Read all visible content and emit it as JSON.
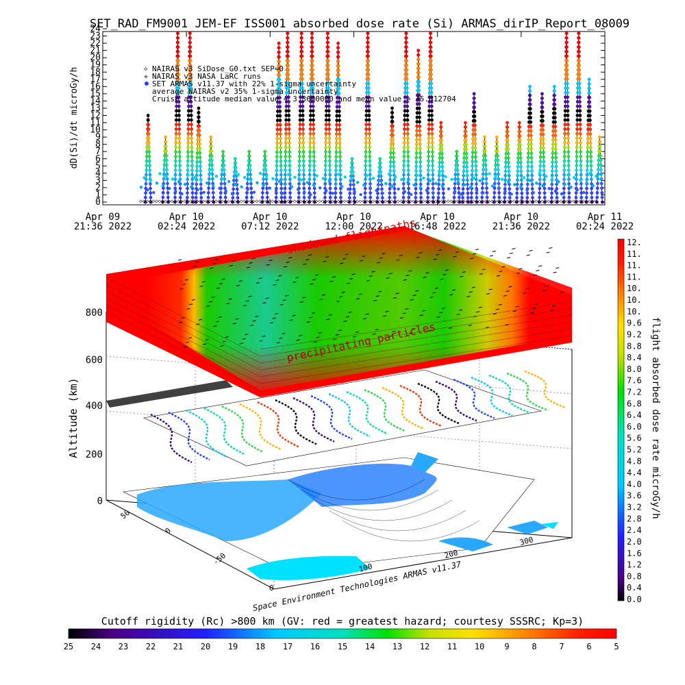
{
  "title": "SET_RAD_FM9001  JEM-EF ISS001 absorbed dose rate (Si) ARMAS_dirIP_Report_08009",
  "chart_data": [
    {
      "type": "scatter",
      "title": "SET_RAD_FM9001  JEM-EF ISS001 absorbed dose rate (Si) ARMAS_dirIP_Report_08009",
      "ylabel": "dD(Si)/dt microGy/h",
      "ylim": [
        0,
        24
      ],
      "yticks": [
        "0",
        "1",
        "2",
        "3",
        "4",
        "5",
        "6",
        "7",
        "8",
        "9",
        "10",
        "11",
        "12",
        "13",
        "14",
        "15",
        "16",
        "17",
        "18",
        "19",
        "20",
        "21",
        "22",
        "23",
        "24"
      ],
      "xlim_hours": [
        0,
        28.8
      ],
      "xticks": [
        {
          "line1": "Apr 09",
          "line2": "21:36 2022",
          "hours": 0
        },
        {
          "line1": "Apr 10",
          "line2": "02:24 2022",
          "hours": 4.8
        },
        {
          "line1": "Apr 10",
          "line2": "07:12 2022",
          "hours": 9.6
        },
        {
          "line1": "Apr 10",
          "line2": "12:00 2022",
          "hours": 14.4
        },
        {
          "line1": "Apr 10",
          "line2": "16:48 2022",
          "hours": 19.2
        },
        {
          "line1": "Apr 10",
          "line2": "21:36 2022",
          "hours": 24.0
        },
        {
          "line1": "Apr 11",
          "line2": "02:24 2022",
          "hours": 28.8
        }
      ],
      "legend": [
        {
          "symbol": "diamond",
          "text": "NAIRAS v3 SiDose_G0.txt SEP=0"
        },
        {
          "symbol": "plus",
          "text": "NAIRAS v3 NASA LaRC runs"
        },
        {
          "symbol": "dot",
          "text": "SET ARMAS v11.37 with 22% 1-sigma uncertainty"
        },
        {
          "symbol": "none",
          "text": "average NAIRAS v2 35% 1-sigma uncertainty"
        },
        {
          "symbol": "none",
          "text": "Cruise altitude median value = 3.3600000 and mean value = 35.812704"
        }
      ],
      "legend_placement": "top-left",
      "series": [
        {
          "name": "SET ARMAS v11.37 with 22% 1-sigma uncertainty",
          "spikes": [
            {
              "t": 2.6,
              "peak": 12
            },
            {
              "t": 3.6,
              "peak": 9
            },
            {
              "t": 4.3,
              "peak": 24
            },
            {
              "t": 5.0,
              "peak": 24
            },
            {
              "t": 5.5,
              "peak": 13
            },
            {
              "t": 6.2,
              "peak": 9
            },
            {
              "t": 6.9,
              "peak": 7
            },
            {
              "t": 7.6,
              "peak": 6
            },
            {
              "t": 8.4,
              "peak": 7
            },
            {
              "t": 9.3,
              "peak": 7
            },
            {
              "t": 10.1,
              "peak": 22
            },
            {
              "t": 10.6,
              "peak": 24
            },
            {
              "t": 11.4,
              "peak": 24
            },
            {
              "t": 12.0,
              "peak": 24
            },
            {
              "t": 12.9,
              "peak": 24
            },
            {
              "t": 13.5,
              "peak": 22
            },
            {
              "t": 14.3,
              "peak": 6
            },
            {
              "t": 15.2,
              "peak": 24
            },
            {
              "t": 15.9,
              "peak": 6
            },
            {
              "t": 16.6,
              "peak": 13
            },
            {
              "t": 17.4,
              "peak": 24
            },
            {
              "t": 18.1,
              "peak": 21
            },
            {
              "t": 18.8,
              "peak": 24
            },
            {
              "t": 19.4,
              "peak": 11
            },
            {
              "t": 20.3,
              "peak": 7
            },
            {
              "t": 20.8,
              "peak": 11
            },
            {
              "t": 21.3,
              "peak": 15
            },
            {
              "t": 21.9,
              "peak": 9
            },
            {
              "t": 22.6,
              "peak": 9
            },
            {
              "t": 23.2,
              "peak": 11
            },
            {
              "t": 23.9,
              "peak": 11
            },
            {
              "t": 24.5,
              "peak": 16
            },
            {
              "t": 25.2,
              "peak": 15
            },
            {
              "t": 25.9,
              "peak": 16
            },
            {
              "t": 26.6,
              "peak": 24
            },
            {
              "t": 27.3,
              "peak": 24
            },
            {
              "t": 27.9,
              "peak": 17
            },
            {
              "t": 28.5,
              "peak": 9
            }
          ]
        }
      ]
    },
    {
      "type": "heatmap",
      "subtype": "3d-surface-stack",
      "zlabel": "Altitude (km)",
      "zticks": [
        "0",
        "200",
        "400",
        "600",
        "800"
      ],
      "xticks": [
        "100",
        "200",
        "300"
      ],
      "yticks": [
        "-50",
        "0",
        "50"
      ],
      "annotations": [
        "shadowed flightpaths",
        "precipitating particles"
      ],
      "footer_text": "Space Environment Technologies ARMAS v11.37",
      "colorbar_right": {
        "label": "flight absorbed dose rate microGy/h",
        "ticks": [
          "12.",
          "11.",
          "11.",
          "11.",
          "10.",
          "10.",
          "10.",
          "9.6",
          "9.2",
          "8.8",
          "8.4",
          "8.0",
          "7.6",
          "7.2",
          "6.8",
          "6.4",
          "6.0",
          "5.6",
          "5.2",
          "4.8",
          "4.4",
          "4.0",
          "3.6",
          "3.2",
          "2.8",
          "2.4",
          "2.0",
          "1.6",
          "1.2",
          "0.8",
          "0.4",
          "0.0"
        ]
      },
      "colorbar_bottom": {
        "label": "Cutoff rigidity (Rc) >800 km (GV: red = greatest hazard; courtesy SSSRC; Kp=3)",
        "ticks": [
          "25",
          "24",
          "23",
          "22",
          "21",
          "20",
          "19",
          "18",
          "17",
          "16",
          "15",
          "14",
          "13",
          "12",
          "11",
          "10",
          "9",
          "8",
          "7",
          "6",
          "5"
        ]
      }
    }
  ]
}
